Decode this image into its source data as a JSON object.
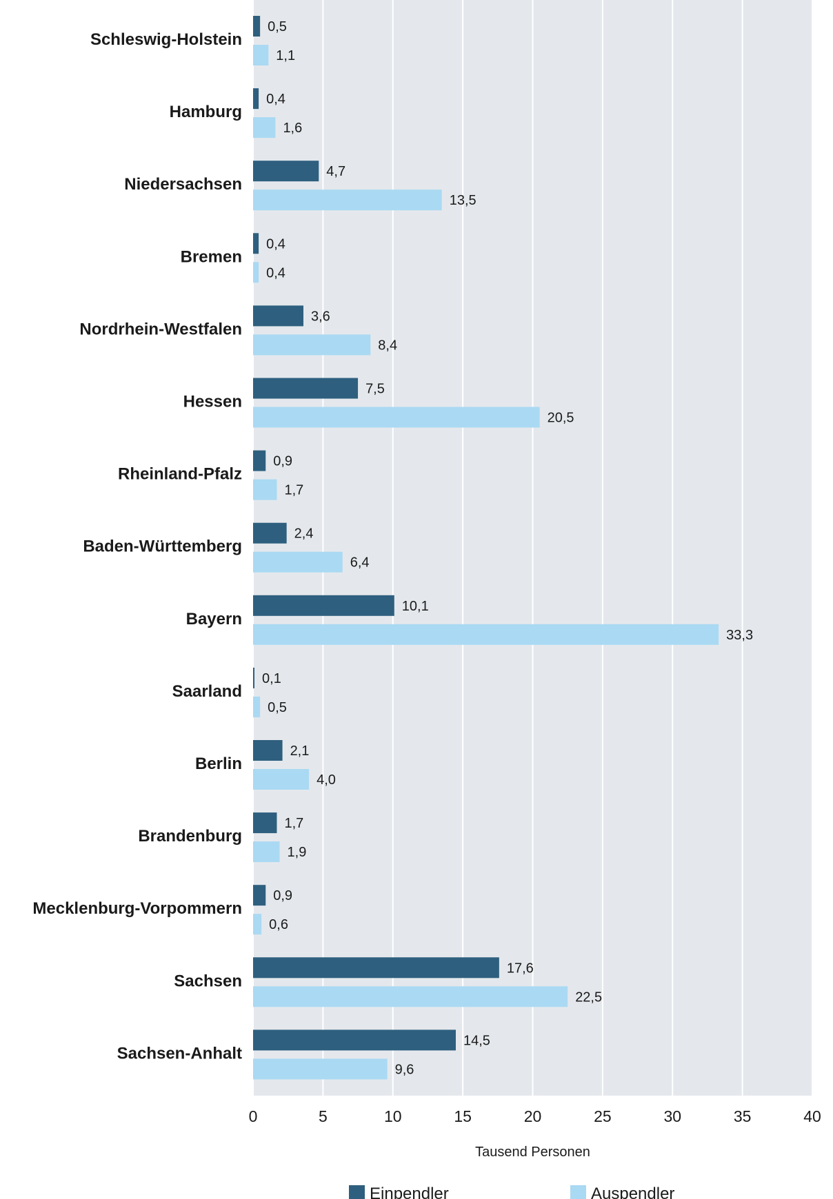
{
  "chart_data": {
    "type": "bar",
    "orientation": "horizontal",
    "categories": [
      "Schleswig-Holstein",
      "Hamburg",
      "Niedersachsen",
      "Bremen",
      "Nordrhein-Westfalen",
      "Hessen",
      "Rheinland-Pfalz",
      "Baden-Württemberg",
      "Bayern",
      "Saarland",
      "Berlin",
      "Brandenburg",
      "Mecklenburg-Vorpommern",
      "Sachsen",
      "Sachsen-Anhalt"
    ],
    "series": [
      {
        "name": "Einpendler",
        "color": "#2e5f7e",
        "values": [
          0.5,
          0.4,
          4.7,
          0.4,
          3.6,
          7.5,
          0.9,
          2.4,
          10.1,
          0.1,
          2.1,
          1.7,
          0.9,
          17.6,
          14.5
        ],
        "labels": [
          "0,5",
          "0,4",
          "4,7",
          "0,4",
          "3,6",
          "7,5",
          "0,9",
          "2,4",
          "10,1",
          "0,1",
          "2,1",
          "1,7",
          "0,9",
          "17,6",
          "14,5"
        ]
      },
      {
        "name": "Auspendler",
        "color": "#aad9f3",
        "values": [
          1.1,
          1.6,
          13.5,
          0.4,
          8.4,
          20.5,
          1.7,
          6.4,
          33.3,
          0.5,
          4.0,
          1.9,
          0.6,
          22.5,
          9.6
        ],
        "labels": [
          "1,1",
          "1,6",
          "13,5",
          "0,4",
          "8,4",
          "20,5",
          "1,7",
          "6,4",
          "33,3",
          "0,5",
          "4,0",
          "1,9",
          "0,6",
          "22,5",
          "9,6"
        ]
      }
    ],
    "xlabel": "Tausend Personen",
    "xlim": [
      0,
      40
    ],
    "xticks": [
      0,
      5,
      10,
      15,
      20,
      25,
      30,
      35,
      40
    ],
    "plot_background": "#e4e8ec",
    "grid": true,
    "legend_position": "bottom"
  }
}
